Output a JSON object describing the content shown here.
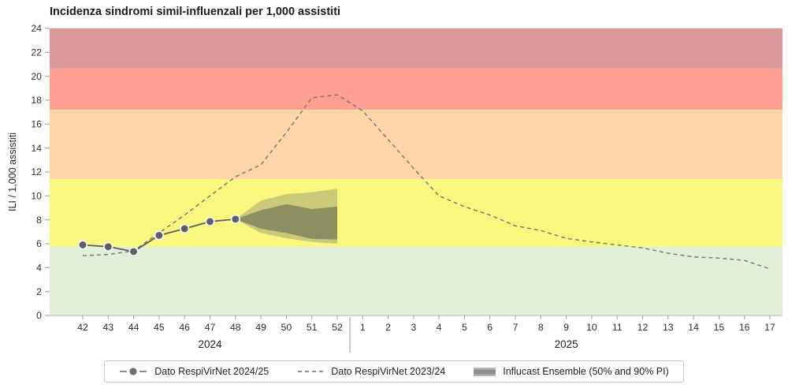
{
  "chart_data": {
    "type": "line",
    "title": "Incidenza sindromi simil-influenzali per 1,000 assistiti",
    "ylabel": "ILI / 1,000 assistiti",
    "ylim": [
      0,
      24
    ],
    "ytick_step": 2,
    "grid": false,
    "legend_position": "bottom-center",
    "categories": [
      "42",
      "43",
      "44",
      "45",
      "46",
      "47",
      "48",
      "49",
      "50",
      "51",
      "52",
      "1",
      "2",
      "3",
      "4",
      "5",
      "6",
      "7",
      "8",
      "9",
      "10",
      "11",
      "12",
      "13",
      "14",
      "15",
      "16",
      "17"
    ],
    "x_groups": [
      {
        "label": "2024",
        "from": "42",
        "to": "52"
      },
      {
        "label": "2025",
        "from": "1",
        "to": "17"
      }
    ],
    "intensity_bands": [
      {
        "to": 5.74,
        "color": "#e1efd8"
      },
      {
        "to": 11.4,
        "color": "#f9f77d"
      },
      {
        "to": 17.2,
        "color": "#fcd6a6"
      },
      {
        "to": 20.65,
        "color": "#ff9f92"
      },
      {
        "to": 24,
        "color": "#db9a9a"
      }
    ],
    "series": [
      {
        "name": "Dato RespiVirNet 2024/25",
        "style": "solid-markers",
        "color": "#5d5d68",
        "values": [
          5.9,
          5.75,
          5.35,
          6.7,
          7.25,
          7.85,
          8.05
        ]
      },
      {
        "name": "Dato RespiVirNet 2023/24",
        "style": "dashed",
        "color": "#75757c",
        "values": [
          5.0,
          5.1,
          5.4,
          6.9,
          8.4,
          10.0,
          11.6,
          12.6,
          15.3,
          18.2,
          18.45,
          17.1,
          14.7,
          12.3,
          10.0,
          9.1,
          8.4,
          7.5,
          7.1,
          6.45,
          6.15,
          5.9,
          5.65,
          5.2,
          4.9,
          4.8,
          4.6,
          3.9
        ]
      }
    ],
    "ensemble": {
      "name": "Influcast Ensemble (50% and 90% PI)",
      "weeks": [
        "48",
        "49",
        "50",
        "51",
        "52"
      ],
      "pi90_upper": [
        8.05,
        9.6,
        10.15,
        10.3,
        10.6
      ],
      "pi50_upper": [
        8.05,
        8.8,
        9.3,
        8.9,
        9.1
      ],
      "pi50_lower": [
        8.05,
        7.25,
        6.9,
        6.4,
        6.35
      ],
      "pi90_lower": [
        8.05,
        6.9,
        6.45,
        6.15,
        6.0
      ],
      "fill_90": "rgba(128,128,116,0.38)",
      "fill_50": "rgba(92,92,82,0.55)"
    },
    "legend": [
      {
        "icon": "line-with-dot-icon",
        "label": "Dato RespiVirNet 2024/25"
      },
      {
        "icon": "dashed-line-icon",
        "label": "Dato RespiVirNet 2023/24"
      },
      {
        "icon": "gray-band-swatch-icon",
        "label": "Influcast Ensemble (50% and 90% PI)"
      }
    ],
    "axis_colors": {
      "tick": "#999999",
      "baseline": "#b5b5b5",
      "separator": "#999999"
    }
  }
}
